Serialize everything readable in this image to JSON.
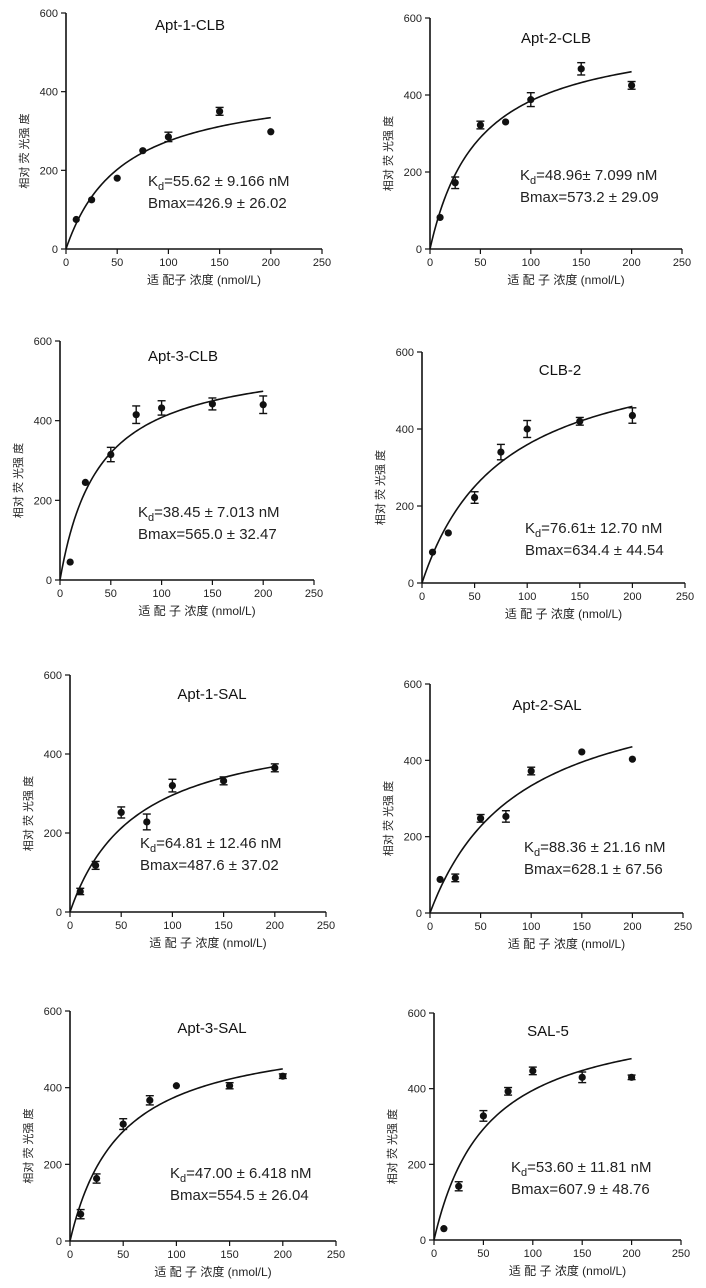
{
  "chart_data": [
    {
      "type": "scatter",
      "title": "Apt-1-CLB",
      "xlabel": "适 配子 浓度 (nmol/L)",
      "ylabel": "相对 荧 光强 度",
      "xlim": [
        0,
        250
      ],
      "ylim": [
        0,
        600
      ],
      "xticks": [
        0,
        50,
        100,
        150,
        200,
        250
      ],
      "yticks": [
        0,
        200,
        400,
        600
      ],
      "x": [
        10,
        25,
        50,
        75,
        100,
        150,
        200
      ],
      "y": [
        75,
        125,
        180,
        250,
        285,
        350,
        298
      ],
      "yerr": [
        0,
        0,
        0,
        0,
        12,
        10,
        0
      ],
      "kd_label": "K",
      "kd_sub": "d",
      "kd_text": "=55.62 ± 9.166 nM",
      "bmax_text": "Bmax=426.9 ± 26.02",
      "fit": {
        "model": "one-site binding",
        "Kd": 55.62,
        "Bmax": 426.9
      },
      "grid": false,
      "legend": "none"
    },
    {
      "type": "scatter",
      "title": "Apt-2-CLB",
      "xlabel": "适 配 子 浓度 (nmol/L)",
      "ylabel": "相对 荧 光强 度",
      "xlim": [
        0,
        250
      ],
      "ylim": [
        0,
        600
      ],
      "xticks": [
        0,
        50,
        100,
        150,
        200,
        250
      ],
      "yticks": [
        0,
        200,
        400,
        600
      ],
      "x": [
        10,
        25,
        50,
        75,
        100,
        150,
        200
      ],
      "y": [
        82,
        172,
        322,
        330,
        388,
        468,
        425
      ],
      "yerr": [
        0,
        15,
        10,
        0,
        18,
        16,
        10
      ],
      "kd_label": "K",
      "kd_sub": "d",
      "kd_text": "=48.96± 7.099 nM",
      "bmax_text": "Bmax=573.2 ± 29.09",
      "fit": {
        "model": "one-site binding",
        "Kd": 48.96,
        "Bmax": 573.2
      },
      "grid": false,
      "legend": "none"
    },
    {
      "type": "scatter",
      "title": "Apt-3-CLB",
      "xlabel": "适 配 子 浓度 (nmol/L)",
      "ylabel": "相对 荧 光强 度",
      "xlim": [
        0,
        250
      ],
      "ylim": [
        0,
        600
      ],
      "xticks": [
        0,
        50,
        100,
        150,
        200,
        250
      ],
      "yticks": [
        0,
        200,
        400,
        600
      ],
      "x": [
        10,
        25,
        50,
        75,
        100,
        150,
        200
      ],
      "y": [
        45,
        245,
        315,
        415,
        432,
        442,
        440
      ],
      "yerr": [
        0,
        0,
        18,
        22,
        18,
        15,
        22
      ],
      "kd_label": "K",
      "kd_sub": "d",
      "kd_text": "=38.45 ± 7.013 nM",
      "bmax_text": "Bmax=565.0 ± 32.47",
      "fit": {
        "model": "one-site binding",
        "Kd": 38.45,
        "Bmax": 565.0
      },
      "grid": false,
      "legend": "none"
    },
    {
      "type": "scatter",
      "title": "CLB-2",
      "xlabel": "适 配 子 浓度 (nmol/L)",
      "ylabel": "相对 荧 光强 度",
      "xlim": [
        0,
        250
      ],
      "ylim": [
        0,
        600
      ],
      "xticks": [
        0,
        50,
        100,
        150,
        200,
        250
      ],
      "yticks": [
        0,
        200,
        400,
        600
      ],
      "x": [
        10,
        25,
        50,
        75,
        100,
        150,
        200
      ],
      "y": [
        80,
        130,
        222,
        340,
        400,
        420,
        435
      ],
      "yerr": [
        0,
        0,
        15,
        20,
        22,
        10,
        20
      ],
      "kd_label": "K",
      "kd_sub": "d",
      "kd_text": "=76.61± 12.70 nM",
      "bmax_text": "Bmax=634.4 ± 44.54",
      "fit": {
        "model": "one-site binding",
        "Kd": 76.61,
        "Bmax": 634.4
      },
      "grid": false,
      "legend": "none"
    },
    {
      "type": "scatter",
      "title": "Apt-1-SAL",
      "xlabel": "适 配 子 浓度 (nmol/L)",
      "ylabel": "相对 荧 光强 度",
      "xlim": [
        0,
        250
      ],
      "ylim": [
        0,
        600
      ],
      "xticks": [
        0,
        50,
        100,
        150,
        200,
        250
      ],
      "yticks": [
        0,
        200,
        400,
        600
      ],
      "x": [
        10,
        25,
        50,
        75,
        100,
        150,
        200
      ],
      "y": [
        52,
        118,
        252,
        228,
        320,
        332,
        365
      ],
      "yerr": [
        8,
        10,
        14,
        20,
        16,
        10,
        10
      ],
      "kd_label": "K",
      "kd_sub": "d",
      "kd_text": "=64.81 ± 12.46 nM",
      "bmax_text": "Bmax=487.6 ± 37.02",
      "fit": {
        "model": "one-site binding",
        "Kd": 64.81,
        "Bmax": 487.6
      },
      "grid": false,
      "legend": "none"
    },
    {
      "type": "scatter",
      "title": "Apt-2-SAL",
      "xlabel": "适 配 子 浓度 (nmol/L)",
      "ylabel": "相对 荧 光强 度",
      "xlim": [
        0,
        250
      ],
      "ylim": [
        0,
        600
      ],
      "xticks": [
        0,
        50,
        100,
        150,
        200,
        250
      ],
      "yticks": [
        0,
        200,
        400,
        600
      ],
      "x": [
        10,
        25,
        50,
        75,
        100,
        150,
        200
      ],
      "y": [
        88,
        92,
        248,
        253,
        372,
        422,
        403
      ],
      "yerr": [
        0,
        10,
        10,
        15,
        10,
        0,
        0
      ],
      "kd_label": "K",
      "kd_sub": "d",
      "kd_text": "=88.36 ± 21.16 nM",
      "bmax_text": "Bmax=628.1 ± 67.56",
      "fit": {
        "model": "one-site binding",
        "Kd": 88.36,
        "Bmax": 628.1
      },
      "grid": false,
      "legend": "none"
    },
    {
      "type": "scatter",
      "title": "Apt-3-SAL",
      "xlabel": "适 配 子 浓度 (nmol/L)",
      "ylabel": "相对 荧 光强 度",
      "xlim": [
        0,
        250
      ],
      "ylim": [
        0,
        600
      ],
      "xticks": [
        0,
        50,
        100,
        150,
        200,
        250
      ],
      "yticks": [
        0,
        200,
        400,
        600
      ],
      "x": [
        10,
        25,
        50,
        75,
        100,
        150,
        200
      ],
      "y": [
        70,
        163,
        305,
        367,
        405,
        405,
        430
      ],
      "yerr": [
        12,
        12,
        14,
        12,
        0,
        8,
        6
      ],
      "kd_label": "K",
      "kd_sub": "d",
      "kd_text": "=47.00 ± 6.418 nM",
      "bmax_text": "Bmax=554.5 ± 26.04",
      "fit": {
        "model": "one-site binding",
        "Kd": 47.0,
        "Bmax": 554.5
      },
      "grid": false,
      "legend": "none"
    },
    {
      "type": "scatter",
      "title": "SAL-5",
      "xlabel": "适 配 子 浓度 (nmol/L)",
      "ylabel": "相对 荧 光强 度",
      "xlim": [
        0,
        250
      ],
      "ylim": [
        0,
        600
      ],
      "xticks": [
        0,
        50,
        100,
        150,
        200,
        250
      ],
      "yticks": [
        0,
        200,
        400,
        600
      ],
      "x": [
        10,
        25,
        50,
        75,
        100,
        150,
        200
      ],
      "y": [
        30,
        142,
        328,
        393,
        447,
        430,
        430
      ],
      "yerr": [
        0,
        12,
        14,
        10,
        10,
        14,
        6
      ],
      "kd_label": "K",
      "kd_sub": "d",
      "kd_text": "=53.60 ± 11.81 nM",
      "bmax_text": "Bmax=607.9 ± 48.76",
      "fit": {
        "model": "one-site binding",
        "Kd": 53.6,
        "Bmax": 607.9
      },
      "grid": false,
      "legend": "none"
    }
  ]
}
